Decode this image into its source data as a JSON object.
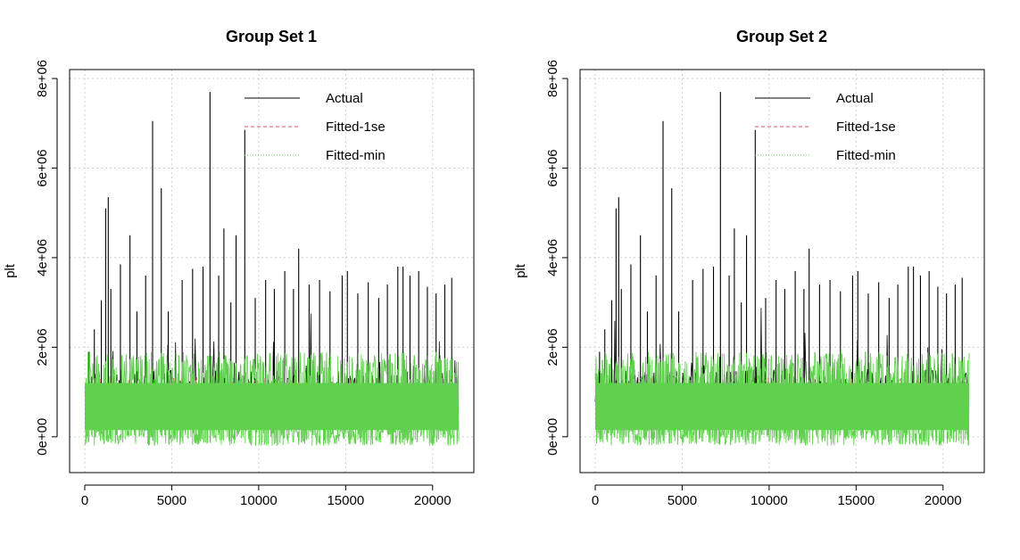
{
  "chart_data": [
    {
      "type": "line",
      "title": "Group Set 1",
      "xlabel": "",
      "ylabel": "plt",
      "xlim": [
        0,
        21500
      ],
      "ylim": [
        -800000,
        8200000
      ],
      "x_ticks": [
        0,
        5000,
        10000,
        15000,
        20000
      ],
      "x_tick_labels": [
        "0",
        "5000",
        "10000",
        "15000",
        "20000"
      ],
      "y_ticks": [
        0,
        2000000,
        4000000,
        6000000,
        8000000
      ],
      "y_tick_labels": [
        "0e+00",
        "2e+06",
        "4e+06",
        "6e+06",
        "8e+06"
      ],
      "grid": true,
      "legend_position": "top-right",
      "series": [
        {
          "name": "Actual",
          "color": "#000000",
          "style": "solid",
          "x": [
            0,
            1200,
            1400,
            2600,
            3900,
            4400,
            7200,
            8000,
            8700,
            9200,
            12300,
            15100,
            18300,
            21500
          ],
          "values": [
            1000000,
            5100000,
            5350000,
            4500000,
            7050000,
            5550000,
            7700000,
            4650000,
            4500000,
            6850000,
            4200000,
            3700000,
            3800000,
            3550000
          ]
        },
        {
          "name": "Fitted-1se",
          "color": "#DF536B",
          "style": "dashed",
          "x": [
            0,
            5000,
            10000,
            15000,
            20000,
            21500
          ],
          "values": [
            900000,
            1000000,
            950000,
            1000000,
            950000,
            1000000
          ]
        },
        {
          "name": "Fitted-min",
          "color": "#61D04F",
          "style": "dotted",
          "x": [
            0,
            5000,
            10000,
            15000,
            20000,
            21500
          ],
          "values": [
            1300000,
            1400000,
            1300000,
            1400000,
            1300000,
            1300000
          ]
        }
      ]
    },
    {
      "type": "line",
      "title": "Group Set 2",
      "xlabel": "",
      "ylabel": "plt",
      "xlim": [
        0,
        21500
      ],
      "ylim": [
        -800000,
        8200000
      ],
      "x_ticks": [
        0,
        5000,
        10000,
        15000,
        20000
      ],
      "x_tick_labels": [
        "0",
        "5000",
        "10000",
        "15000",
        "20000"
      ],
      "y_ticks": [
        0,
        2000000,
        4000000,
        6000000,
        8000000
      ],
      "y_tick_labels": [
        "0e+00",
        "2e+06",
        "4e+06",
        "6e+06",
        "8e+06"
      ],
      "grid": true,
      "legend_position": "top-right",
      "series": [
        {
          "name": "Actual",
          "color": "#000000",
          "style": "solid",
          "x": [
            0,
            1200,
            1400,
            2600,
            3900,
            4400,
            7200,
            8000,
            8700,
            9200,
            12300,
            15100,
            18300,
            21500
          ],
          "values": [
            1000000,
            5100000,
            5350000,
            4500000,
            7050000,
            5550000,
            7700000,
            4650000,
            4500000,
            6850000,
            4200000,
            3700000,
            3800000,
            3550000
          ]
        },
        {
          "name": "Fitted-1se",
          "color": "#DF536B",
          "style": "dashed",
          "x": [
            0,
            5000,
            10000,
            15000,
            20000,
            21500
          ],
          "values": [
            900000,
            1000000,
            950000,
            1000000,
            950000,
            1000000
          ]
        },
        {
          "name": "Fitted-min",
          "color": "#61D04F",
          "style": "dotted",
          "x": [
            0,
            5000,
            10000,
            15000,
            20000,
            21500
          ],
          "values": [
            1300000,
            1400000,
            1300000,
            1400000,
            1300000,
            1300000
          ]
        }
      ]
    }
  ],
  "spike_events": [
    {
      "x": 250,
      "v": 1900000
    },
    {
      "x": 550,
      "v": 2400000
    },
    {
      "x": 950,
      "v": 3050000
    },
    {
      "x": 1200,
      "v": 5100000
    },
    {
      "x": 1350,
      "v": 5350000
    },
    {
      "x": 1500,
      "v": 3300000
    },
    {
      "x": 2050,
      "v": 3850000
    },
    {
      "x": 2600,
      "v": 4500000
    },
    {
      "x": 3000,
      "v": 2800000
    },
    {
      "x": 3500,
      "v": 3600000
    },
    {
      "x": 3900,
      "v": 7050000
    },
    {
      "x": 4400,
      "v": 5550000
    },
    {
      "x": 4800,
      "v": 2800000
    },
    {
      "x": 5600,
      "v": 3500000
    },
    {
      "x": 6200,
      "v": 3750000
    },
    {
      "x": 6800,
      "v": 3800000
    },
    {
      "x": 7200,
      "v": 7700000
    },
    {
      "x": 7700,
      "v": 3600000
    },
    {
      "x": 8000,
      "v": 4650000
    },
    {
      "x": 8400,
      "v": 3000000
    },
    {
      "x": 8700,
      "v": 4500000
    },
    {
      "x": 9200,
      "v": 6850000
    },
    {
      "x": 9800,
      "v": 3100000
    },
    {
      "x": 10400,
      "v": 3500000
    },
    {
      "x": 10900,
      "v": 3300000
    },
    {
      "x": 11500,
      "v": 3700000
    },
    {
      "x": 12000,
      "v": 3300000
    },
    {
      "x": 12300,
      "v": 4200000
    },
    {
      "x": 12900,
      "v": 3400000
    },
    {
      "x": 13500,
      "v": 3500000
    },
    {
      "x": 14100,
      "v": 3250000
    },
    {
      "x": 14800,
      "v": 3600000
    },
    {
      "x": 15100,
      "v": 3700000
    },
    {
      "x": 15700,
      "v": 3200000
    },
    {
      "x": 16300,
      "v": 3450000
    },
    {
      "x": 16900,
      "v": 3100000
    },
    {
      "x": 17400,
      "v": 3400000
    },
    {
      "x": 18000,
      "v": 3800000
    },
    {
      "x": 18300,
      "v": 3800000
    },
    {
      "x": 18700,
      "v": 3600000
    },
    {
      "x": 19200,
      "v": 3700000
    },
    {
      "x": 19700,
      "v": 3350000
    },
    {
      "x": 20200,
      "v": 3200000
    },
    {
      "x": 20700,
      "v": 3400000
    },
    {
      "x": 21100,
      "v": 3550000
    }
  ]
}
